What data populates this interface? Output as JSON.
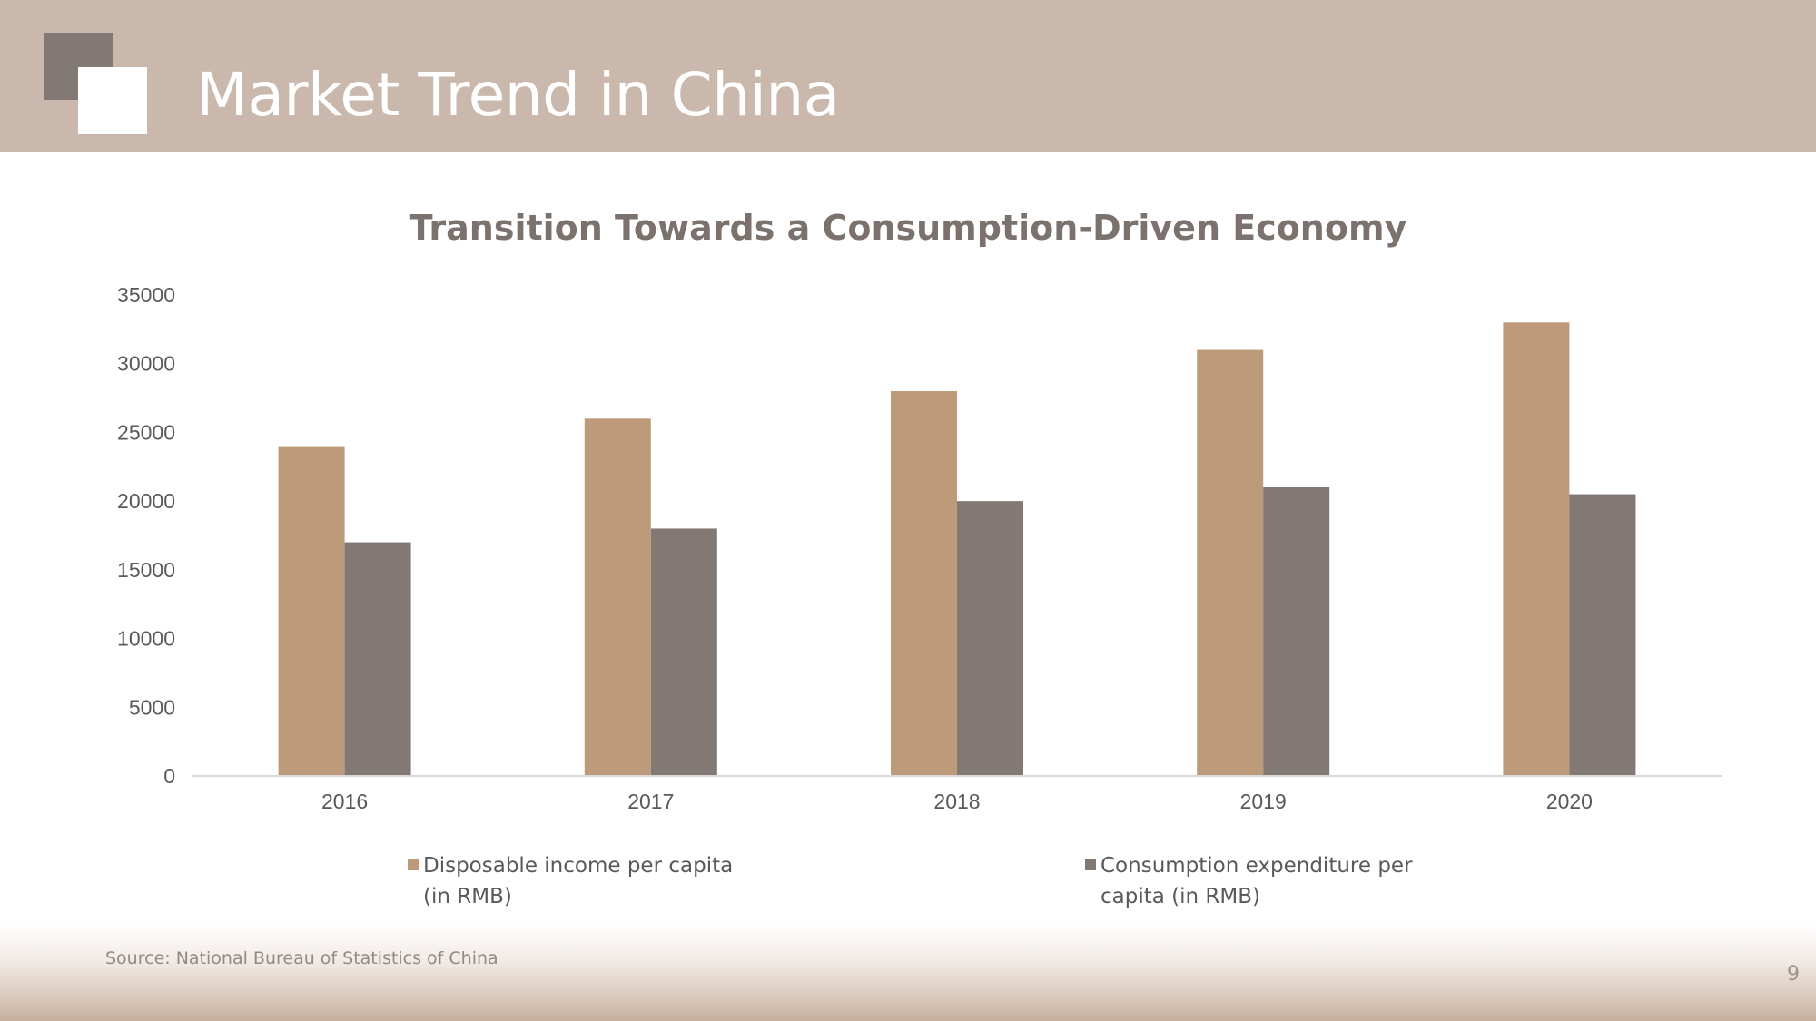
{
  "slide": {
    "title": "Market Trend in China",
    "source": "Source: National Bureau of Statistics of China",
    "page_number": "9"
  },
  "colors": {
    "header_bg": "#cab8ac",
    "logo_dark": "#827874",
    "series_income": "#bd9b7a",
    "series_consumption": "#827874"
  },
  "chart_data": {
    "type": "bar",
    "title": "Transition Towards a Consumption-Driven Economy",
    "xlabel": "",
    "ylabel": "",
    "categories": [
      "2016",
      "2017",
      "2018",
      "2019",
      "2020"
    ],
    "series": [
      {
        "name": "Disposable income per capita (in RMB)",
        "legend_lines": [
          "Disposable income per capita",
          "(in RMB)"
        ],
        "color": "#bd9b7a",
        "values": [
          24000,
          26000,
          28000,
          31000,
          33000
        ]
      },
      {
        "name": "Consumption expenditure per capita (in RMB)",
        "legend_lines": [
          "Consumption expenditure per",
          "capita (in RMB)"
        ],
        "color": "#827874",
        "values": [
          17000,
          18000,
          20000,
          21000,
          20500
        ]
      }
    ],
    "ylim": [
      0,
      35000
    ],
    "yticks": [
      0,
      5000,
      10000,
      15000,
      20000,
      25000,
      30000,
      35000
    ],
    "grid": false,
    "legend_position": "bottom"
  }
}
